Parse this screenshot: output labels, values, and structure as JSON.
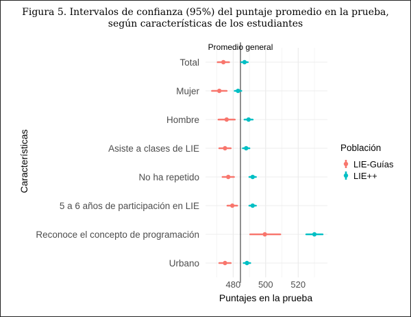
{
  "figure": {
    "title_line1": "Figura 5. Intervalos de confianza (95%) del puntaje promedio en la prueba,",
    "title_line2": "según características de los estudiantes"
  },
  "chart_data": {
    "type": "errorbar",
    "title": "Figura 5. Intervalos de confianza (95%) del puntaje promedio en la prueba, según características de los estudiantes",
    "xlabel": "Puntajes en la prueba",
    "ylabel": "Características",
    "xlim": [
      463,
      538
    ],
    "xticks": [
      480,
      500,
      520
    ],
    "reference_line": {
      "value": 484.5,
      "label": "Promedio general"
    },
    "categories": [
      "Total",
      "Mujer",
      "Hombre",
      "Asiste a clases de LIE",
      "No ha repetido",
      "5 a 6 años de participación en LIE",
      "Reconoce el concepto de programación",
      "Urbano"
    ],
    "legend": {
      "title": "Población",
      "position": "right"
    },
    "series": [
      {
        "name": "LIE-Guías",
        "color": "#F8766D",
        "mean": [
          474,
          471.5,
          476,
          475,
          477,
          479.5,
          499.5,
          475
        ],
        "lower": [
          470.5,
          467,
          471,
          471.5,
          473.5,
          476.5,
          490.5,
          471.5
        ],
        "upper": [
          477.5,
          476,
          481,
          478.5,
          480.5,
          482.5,
          509,
          478.5
        ]
      },
      {
        "name": "LIE++",
        "color": "#00BFC4",
        "mean": [
          487,
          483,
          489.5,
          488,
          492,
          492,
          530,
          488.5
        ],
        "lower": [
          485,
          481,
          487,
          486,
          490,
          490,
          525,
          486.5
        ],
        "upper": [
          489,
          485,
          492,
          490,
          494,
          494,
          535,
          490.5
        ]
      }
    ]
  }
}
